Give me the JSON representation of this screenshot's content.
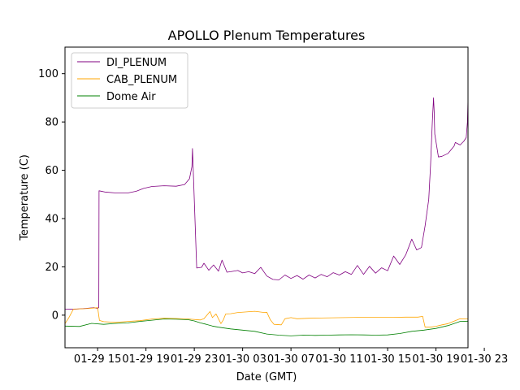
{
  "chart_data": {
    "type": "line",
    "title": "APOLLO Plenum Temperatures",
    "xlabel": "Date (GMT)",
    "ylabel": "Temperature (C)",
    "xlim": [
      12.3,
      45.65
    ],
    "ylim": [
      -13.5,
      111
    ],
    "grid": false,
    "legend_position": "upper-left",
    "x_unit": "hours since 2019-01-29 00:00 GMT",
    "x_ticks": [
      {
        "value": 15,
        "label": "01-29 15"
      },
      {
        "value": 19,
        "label": "01-29 19"
      },
      {
        "value": 23,
        "label": "01-29 23"
      },
      {
        "value": 27,
        "label": "01-30 03"
      },
      {
        "value": 31,
        "label": "01-30 07"
      },
      {
        "value": 35,
        "label": "01-30 11"
      },
      {
        "value": 39,
        "label": "01-30 15"
      },
      {
        "value": 43,
        "label": "01-30 19"
      },
      {
        "value": 47,
        "label": "01-30 23"
      }
    ],
    "y_ticks": [
      {
        "value": 0,
        "label": "0"
      },
      {
        "value": 20,
        "label": "20"
      },
      {
        "value": 40,
        "label": "40"
      },
      {
        "value": 60,
        "label": "60"
      },
      {
        "value": 80,
        "label": "80"
      },
      {
        "value": 100,
        "label": "100"
      }
    ],
    "series": [
      {
        "name": "DI_PLENUM",
        "color": "#800080",
        "x": [
          12.3,
          13.0,
          14.0,
          14.7,
          15.0,
          15.1,
          15.12,
          15.6,
          16.5,
          17.5,
          18.2,
          18.8,
          19.5,
          20.5,
          21.5,
          22.2,
          22.6,
          22.8,
          22.85,
          23.2,
          23.6,
          23.8,
          24.2,
          24.6,
          25.0,
          25.3,
          25.7,
          26.0,
          26.6,
          27.0,
          27.5,
          28.0,
          28.5,
          29.0,
          29.5,
          30.0,
          30.5,
          31.0,
          31.5,
          32.0,
          32.5,
          33.0,
          33.5,
          34.0,
          34.5,
          35.0,
          35.5,
          36.0,
          36.5,
          37.0,
          37.5,
          38.0,
          38.5,
          39.0,
          39.5,
          40.0,
          40.5,
          41.0,
          41.4,
          41.8,
          42.1,
          42.4,
          42.55,
          42.7,
          42.8,
          42.85,
          42.9,
          43.2,
          43.5,
          44.0,
          44.5,
          44.6,
          45.0,
          45.3,
          45.5,
          45.6,
          45.65
        ],
        "values": [
          2.5,
          2.4,
          2.8,
          3.1,
          2.8,
          3.2,
          51.5,
          51.0,
          50.6,
          50.6,
          51.3,
          52.5,
          53.3,
          53.6,
          53.4,
          54.1,
          56.5,
          61.5,
          69.0,
          19.5,
          19.8,
          21.5,
          18.6,
          20.8,
          18.2,
          22.8,
          17.8,
          18.0,
          18.5,
          17.5,
          18.0,
          17.2,
          19.8,
          16.2,
          14.8,
          14.6,
          16.6,
          15.2,
          16.4,
          14.9,
          16.6,
          15.4,
          16.9,
          15.9,
          17.6,
          16.6,
          18.0,
          16.9,
          20.6,
          16.9,
          20.2,
          17.4,
          19.6,
          18.4,
          24.5,
          21.0,
          25.0,
          31.5,
          27.0,
          28.0,
          37.0,
          48.0,
          62.0,
          80.0,
          90.0,
          84.0,
          75.0,
          65.5,
          65.8,
          67.0,
          70.0,
          71.5,
          70.5,
          72.0,
          73.5,
          80.0,
          89.5
        ]
      },
      {
        "name": "CAB_PLENUM",
        "color": "#ffa500",
        "x": [
          12.3,
          12.6,
          13.0,
          14.0,
          15.0,
          15.15,
          15.5,
          16.5,
          17.5,
          18.5,
          19.5,
          20.5,
          21.5,
          22.5,
          23.5,
          23.8,
          24.3,
          24.5,
          24.8,
          25.2,
          25.4,
          25.6,
          26.0,
          26.6,
          27.2,
          28.0,
          28.8,
          29.0,
          29.3,
          29.6,
          30.2,
          30.5,
          31.0,
          31.5,
          32.5,
          33.5,
          34.5,
          35.5,
          36.5,
          37.5,
          38.5,
          39.5,
          40.5,
          41.5,
          41.9,
          42.1,
          42.5,
          43.0,
          43.5,
          44.0,
          44.5,
          45.0,
          45.65
        ],
        "values": [
          -3.5,
          -1.2,
          2.5,
          2.7,
          3.1,
          -2.2,
          -2.7,
          -3.0,
          -2.6,
          -2.3,
          -1.6,
          -1.3,
          -1.4,
          -1.6,
          -2.0,
          -1.5,
          1.5,
          -1.0,
          0.5,
          -3.5,
          -2.0,
          0.5,
          0.6,
          1.1,
          1.3,
          1.6,
          1.1,
          1.2,
          -2.0,
          -3.8,
          -4.0,
          -1.5,
          -1.0,
          -1.5,
          -1.3,
          -1.2,
          -1.1,
          -1.0,
          -0.9,
          -0.9,
          -0.9,
          -0.9,
          -0.8,
          -0.8,
          -0.5,
          -5.0,
          -5.0,
          -4.6,
          -4.0,
          -3.5,
          -2.5,
          -1.5,
          -1.6
        ]
      },
      {
        "name": "Dome Air",
        "color": "#008000",
        "x": [
          12.3,
          13.5,
          14.5,
          15.5,
          16.5,
          17.5,
          18.5,
          19.5,
          20.5,
          21.5,
          22.5,
          23.0,
          23.5,
          24.0,
          24.5,
          25.0,
          26.0,
          27.0,
          28.0,
          29.0,
          30.0,
          31.0,
          32.0,
          33.0,
          34.0,
          35.0,
          36.0,
          37.0,
          38.0,
          39.0,
          40.0,
          41.0,
          42.0,
          43.0,
          44.0,
          45.0,
          45.65
        ],
        "values": [
          -4.5,
          -4.7,
          -3.4,
          -3.8,
          -3.4,
          -3.2,
          -2.6,
          -2.1,
          -1.6,
          -1.7,
          -1.9,
          -2.4,
          -3.2,
          -3.8,
          -4.5,
          -5.0,
          -5.7,
          -6.2,
          -6.7,
          -7.8,
          -8.3,
          -8.6,
          -8.3,
          -8.4,
          -8.3,
          -8.2,
          -8.1,
          -8.2,
          -8.3,
          -8.2,
          -7.6,
          -6.7,
          -6.2,
          -5.5,
          -4.3,
          -2.6,
          -2.5
        ]
      }
    ]
  }
}
